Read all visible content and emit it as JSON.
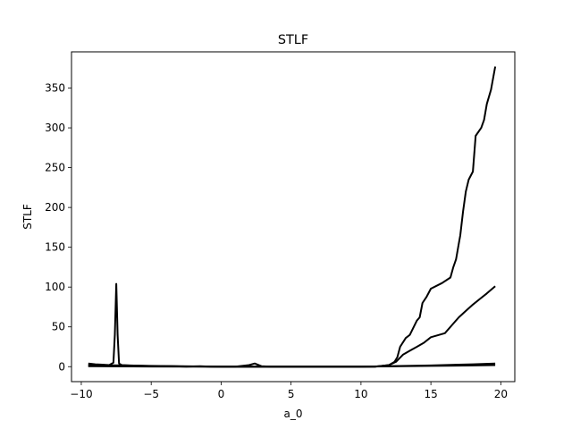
{
  "chart_data": {
    "type": "line",
    "title": "STLF",
    "xlabel": "a_0",
    "ylabel": "STLF",
    "xlim": [
      -10.7,
      21.0
    ],
    "ylim": [
      -18.8,
      395.5
    ],
    "xticks": [
      -10,
      -5,
      0,
      5,
      10,
      15,
      20
    ],
    "xtick_labels": [
      "−10",
      "−5",
      "0",
      "5",
      "10",
      "15",
      "20"
    ],
    "yticks": [
      0,
      50,
      100,
      150,
      200,
      250,
      300,
      350
    ],
    "ytick_labels": [
      "0",
      "50",
      "100",
      "150",
      "200",
      "250",
      "300",
      "350"
    ],
    "grid": false,
    "line_color": "#000000",
    "series": [
      {
        "x": [
          -9.5,
          -9,
          -8.5,
          -8,
          -7.7,
          -7.6,
          -7.5,
          -7.4,
          -7.3,
          -7.1,
          -6.5,
          -5.5,
          -4.5,
          -3.5,
          -2.5,
          -1.5,
          -0.7,
          0,
          1,
          2,
          2.4,
          2.9,
          3.5,
          5,
          8,
          11,
          12,
          12.4,
          12.6,
          12.8,
          13.2,
          13.5,
          14,
          14.2,
          14.4,
          14.7,
          15,
          15.8,
          16.4,
          16.6,
          16.8,
          17.0,
          17.1,
          17.3,
          17.5,
          17.7,
          18.0,
          18.2,
          18.6,
          18.8,
          19.0,
          19.3,
          19.6
        ],
        "y": [
          4,
          3,
          2.5,
          2,
          5,
          40,
          104,
          40,
          4,
          2,
          1.5,
          1,
          0.5,
          0.5,
          0,
          0.5,
          0,
          0,
          0,
          2,
          4,
          0.5,
          0,
          0,
          0,
          0,
          2,
          6,
          12,
          25,
          36,
          40,
          58,
          62,
          80,
          88,
          98,
          105,
          112,
          125,
          135,
          155,
          165,
          195,
          220,
          235,
          245,
          290,
          300,
          310,
          330,
          348,
          377
        ]
      },
      {
        "x": [
          -9.5,
          -7,
          -5,
          0,
          5,
          11,
          12,
          12.5,
          13,
          13.5,
          14,
          14.5,
          15,
          16,
          16.5,
          17,
          17.5,
          18,
          18.5,
          19,
          19.6
        ],
        "y": [
          2,
          1.5,
          1,
          0,
          0,
          0,
          2,
          6,
          15,
          20,
          25,
          30,
          37,
          42,
          52,
          62,
          70,
          78,
          85,
          92,
          101
        ]
      },
      {
        "x": [
          -9.5,
          -5,
          0,
          10,
          15,
          18,
          19.6
        ],
        "y": [
          1,
          0.5,
          0,
          0,
          1.5,
          3,
          4
        ]
      },
      {
        "x": [
          -9.5,
          -5,
          0,
          10,
          15,
          18,
          19.6
        ],
        "y": [
          0.5,
          0.2,
          0,
          0,
          1,
          1.5,
          2
        ]
      }
    ]
  }
}
